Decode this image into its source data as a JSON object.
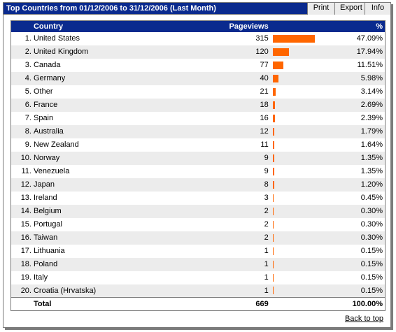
{
  "header": {
    "title": "Top Countries from 01/12/2006 to 31/12/2006 (Last Month)",
    "buttons": {
      "print": "Print",
      "export": "Export",
      "info": "Info"
    }
  },
  "table": {
    "columns": {
      "country": "Country",
      "pageviews": "Pageviews",
      "percent": "%"
    },
    "rows": [
      {
        "rank": "1.",
        "country": "United States",
        "pageviews": "315",
        "percent": "47.09%",
        "share": 0.4709
      },
      {
        "rank": "2.",
        "country": "United Kingdom",
        "pageviews": "120",
        "percent": "17.94%",
        "share": 0.1794
      },
      {
        "rank": "3.",
        "country": "Canada",
        "pageviews": "77",
        "percent": "11.51%",
        "share": 0.1151
      },
      {
        "rank": "4.",
        "country": "Germany",
        "pageviews": "40",
        "percent": "5.98%",
        "share": 0.0598
      },
      {
        "rank": "5.",
        "country": "Other",
        "pageviews": "21",
        "percent": "3.14%",
        "share": 0.0314
      },
      {
        "rank": "6.",
        "country": "France",
        "pageviews": "18",
        "percent": "2.69%",
        "share": 0.0269
      },
      {
        "rank": "7.",
        "country": "Spain",
        "pageviews": "16",
        "percent": "2.39%",
        "share": 0.0239
      },
      {
        "rank": "8.",
        "country": "Australia",
        "pageviews": "12",
        "percent": "1.79%",
        "share": 0.0179
      },
      {
        "rank": "9.",
        "country": "New Zealand",
        "pageviews": "11",
        "percent": "1.64%",
        "share": 0.0164
      },
      {
        "rank": "10.",
        "country": "Norway",
        "pageviews": "9",
        "percent": "1.35%",
        "share": 0.0135
      },
      {
        "rank": "11.",
        "country": "Venezuela",
        "pageviews": "9",
        "percent": "1.35%",
        "share": 0.0135
      },
      {
        "rank": "12.",
        "country": "Japan",
        "pageviews": "8",
        "percent": "1.20%",
        "share": 0.012
      },
      {
        "rank": "13.",
        "country": "Ireland",
        "pageviews": "3",
        "percent": "0.45%",
        "share": 0.0045
      },
      {
        "rank": "14.",
        "country": "Belgium",
        "pageviews": "2",
        "percent": "0.30%",
        "share": 0.003
      },
      {
        "rank": "15.",
        "country": "Portugal",
        "pageviews": "2",
        "percent": "0.30%",
        "share": 0.003
      },
      {
        "rank": "16.",
        "country": "Taiwan",
        "pageviews": "2",
        "percent": "0.30%",
        "share": 0.003
      },
      {
        "rank": "17.",
        "country": "Lithuania",
        "pageviews": "1",
        "percent": "0.15%",
        "share": 0.0015
      },
      {
        "rank": "18.",
        "country": "Poland",
        "pageviews": "1",
        "percent": "0.15%",
        "share": 0.0015
      },
      {
        "rank": "19.",
        "country": "Italy",
        "pageviews": "1",
        "percent": "0.15%",
        "share": 0.0015
      },
      {
        "rank": "20.",
        "country": "Croatia (Hrvatska)",
        "pageviews": "1",
        "percent": "0.15%",
        "share": 0.0015
      }
    ],
    "total": {
      "label": "Total",
      "pageviews": "669",
      "percent": "100.00%"
    }
  },
  "footer": {
    "back_to_top": "Back to top"
  },
  "colors": {
    "header_bg": "#0a2a8e",
    "bar": "#ff6600",
    "row_alt": "#ececec"
  }
}
